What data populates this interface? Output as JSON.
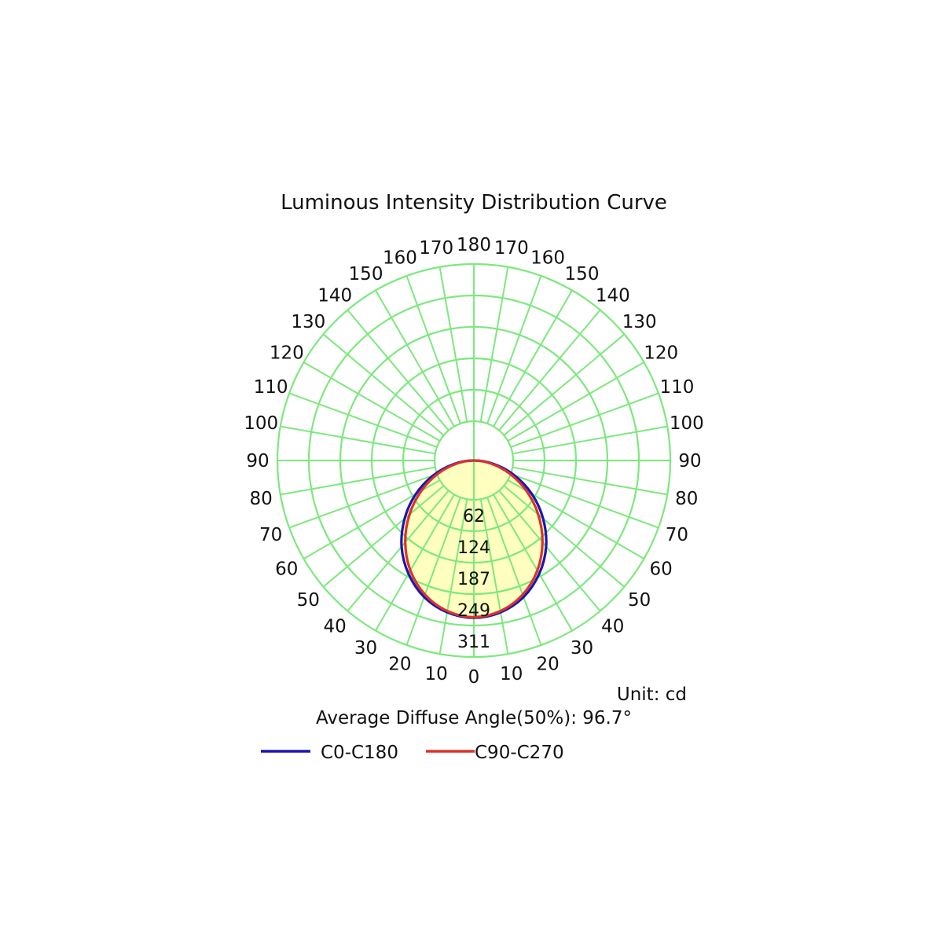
{
  "chart_data": {
    "type": "polar",
    "title": "Luminous Intensity Distribution Curve",
    "unit_label": "Unit: cd",
    "diffuse_angle_label": "Average Diffuse Angle(50%): 96.7°",
    "angle_step_deg": 10,
    "angle_ticks_left": [
      0,
      10,
      20,
      30,
      40,
      50,
      60,
      70,
      80,
      90,
      100,
      110,
      120,
      130,
      140,
      150,
      160,
      170,
      180
    ],
    "angle_ticks_right": [
      10,
      20,
      30,
      40,
      50,
      60,
      70,
      80,
      90,
      100,
      110,
      120,
      130,
      140,
      150,
      160,
      170
    ],
    "ring_values": [
      62,
      124,
      187,
      249,
      311
    ],
    "r_max": 311,
    "grid_color": "#7de87d",
    "fill_color": "#ffffc0",
    "series": [
      {
        "name": "C0-C180",
        "color": "#1c14b4",
        "angles": [
          0,
          10,
          20,
          30,
          40,
          50,
          60,
          70,
          80,
          90
        ],
        "values": [
          249,
          244,
          230,
          207,
          178,
          143,
          106,
          68,
          32,
          0
        ]
      },
      {
        "name": "C90-C270",
        "color": "#d8342c",
        "angles": [
          0,
          10,
          20,
          30,
          40,
          50,
          60,
          70,
          80,
          90
        ],
        "values": [
          248,
          242,
          226,
          201,
          169,
          133,
          96,
          60,
          27,
          0
        ]
      }
    ]
  }
}
